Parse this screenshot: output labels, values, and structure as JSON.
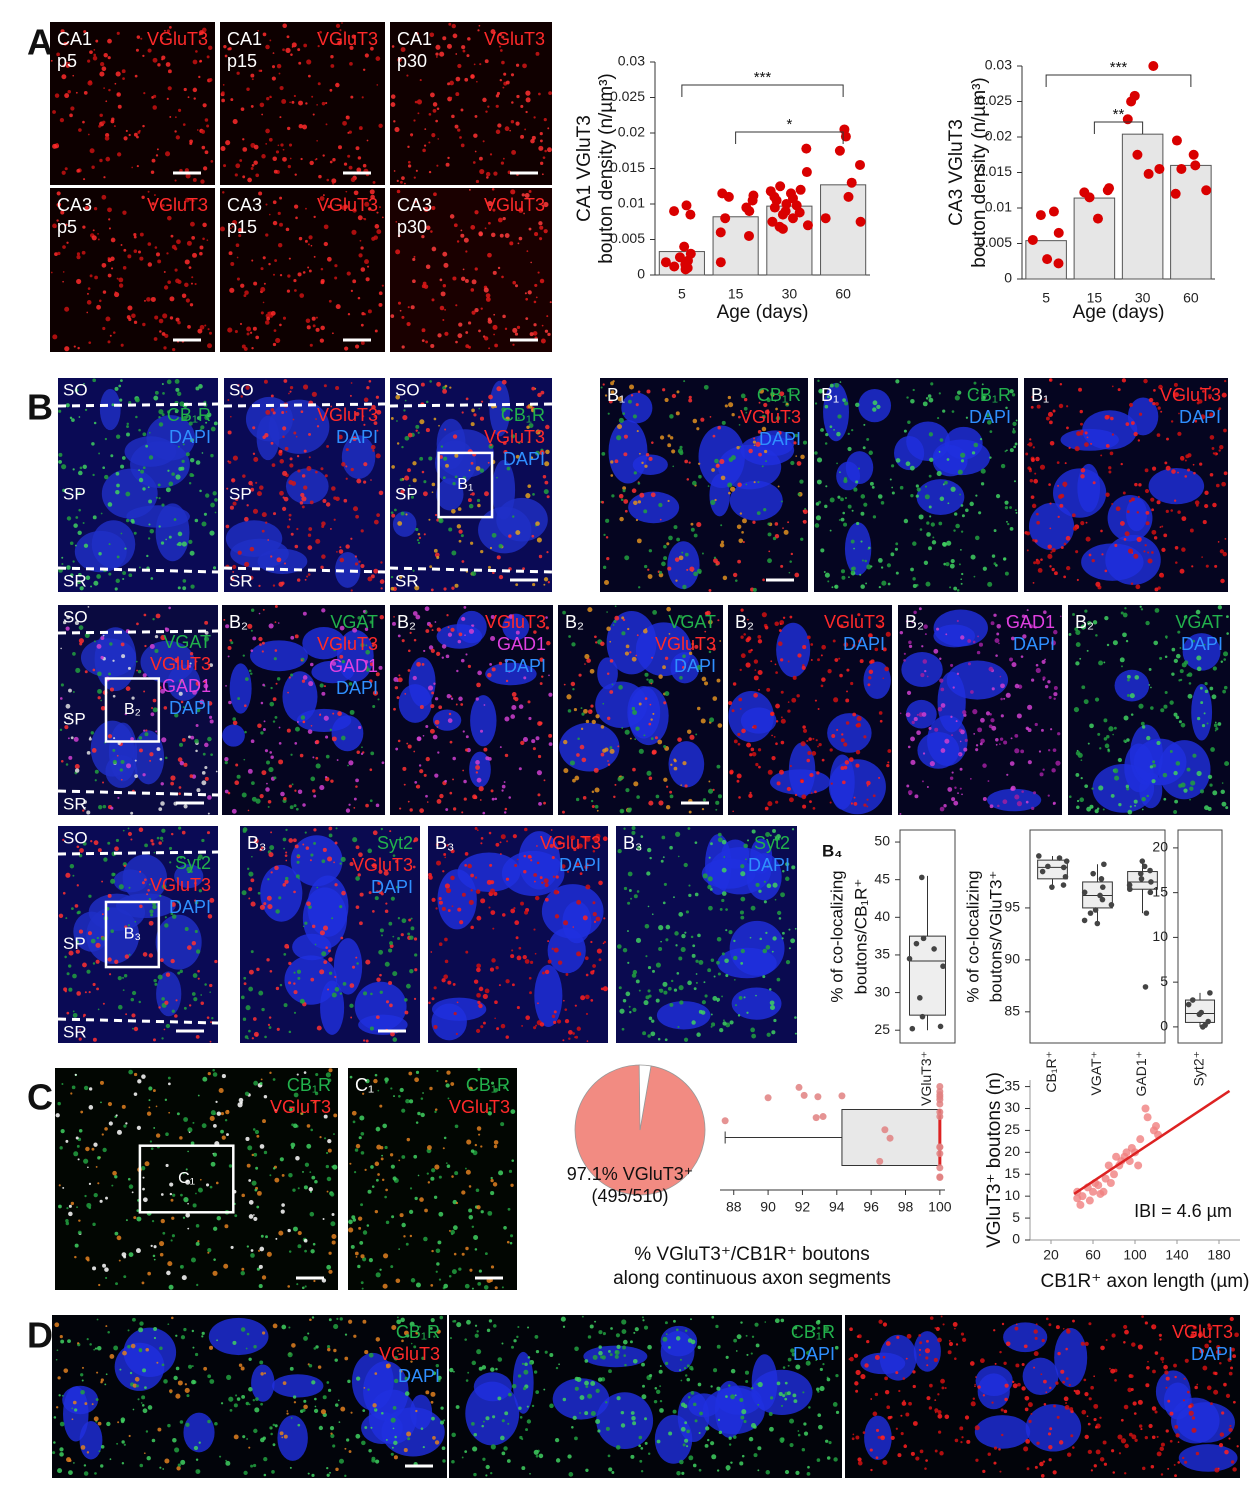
{
  "panel_labels": [
    "A",
    "B",
    "C",
    "D"
  ],
  "images": [
    {
      "bg": "#0d0000",
      "dots": [
        "#c81010",
        "#ff2a2a"
      ],
      "left": [
        {
          "text": "CA1",
          "color": "#ffffff"
        },
        {
          "text": "p5",
          "color": "#ffffff"
        }
      ],
      "right": [
        {
          "text": "VGluT3",
          "color": "#ff2a2a"
        }
      ],
      "scale_bar": true
    },
    {
      "bg": "#0d0000",
      "dots": [
        "#c81010",
        "#ff2a2a"
      ],
      "left": [
        {
          "text": "CA1",
          "color": "#ffffff"
        },
        {
          "text": "p15",
          "color": "#ffffff"
        }
      ],
      "right": [
        {
          "text": "VGluT3",
          "color": "#ff2a2a"
        }
      ],
      "scale_bar": true
    },
    {
      "bg": "#100000",
      "dots": [
        "#d01515",
        "#ff3030"
      ],
      "left": [
        {
          "text": "CA1",
          "color": "#ffffff"
        },
        {
          "text": "p30",
          "color": "#ffffff"
        }
      ],
      "right": [
        {
          "text": "VGluT3",
          "color": "#ff2a2a"
        }
      ],
      "scale_bar": true
    },
    {
      "bg": "#0d0000",
      "dots": [
        "#c81010",
        "#ff2a2a"
      ],
      "left": [
        {
          "text": "CA3",
          "color": "#ffffff"
        },
        {
          "text": "p5",
          "color": "#ffffff"
        }
      ],
      "right": [
        {
          "text": "VGluT3",
          "color": "#ff2a2a"
        }
      ],
      "scale_bar": true
    },
    {
      "bg": "#0d0000",
      "dots": [
        "#c81010",
        "#ff2a2a"
      ],
      "left": [
        {
          "text": "CA3",
          "color": "#ffffff"
        },
        {
          "text": "p15",
          "color": "#ffffff"
        }
      ],
      "right": [
        {
          "text": "VGluT3",
          "color": "#ff2a2a"
        }
      ],
      "scale_bar": true
    },
    {
      "bg": "#1a0000",
      "dots": [
        "#e01818",
        "#ff3a3a"
      ],
      "left": [
        {
          "text": "CA3",
          "color": "#ffffff"
        },
        {
          "text": "p30",
          "color": "#ffffff"
        }
      ],
      "right": [
        {
          "text": "VGluT3",
          "color": "#ff2a2a"
        }
      ],
      "scale_bar": true
    },
    {
      "bg": "#0a0a55",
      "nuclei": "#1f2fc8",
      "dots": [
        "#22a040",
        "#3fd060"
      ],
      "layers": [
        "SO",
        "SP",
        "SR"
      ],
      "right": [
        {
          "text": "CB₁R",
          "color": "#22b14c"
        },
        {
          "text": "DAPI",
          "color": "#2f8fff"
        }
      ]
    },
    {
      "bg": "#0a0a55",
      "nuclei": "#1f2fc8",
      "dots": [
        "#d01818",
        "#ff3030"
      ],
      "layers": [
        "SO",
        "SP",
        "SR"
      ],
      "right": [
        {
          "text": "VGluT3",
          "color": "#ff2a2a"
        },
        {
          "text": "DAPI",
          "color": "#2f8fff"
        }
      ]
    },
    {
      "bg": "#0a0a55",
      "nuclei": "#1f2fc8",
      "dots": [
        "#22a040",
        "#ff3030",
        "#e0a020"
      ],
      "layers": [
        "SO",
        "SP",
        "SR"
      ],
      "inset": "B₁",
      "right": [
        {
          "text": "CB₁R",
          "color": "#22b14c"
        },
        {
          "text": "VGluT3",
          "color": "#ff2a2a"
        },
        {
          "text": "DAPI",
          "color": "#2f8fff"
        }
      ],
      "scale_bar": true
    },
    {
      "bg": "#050520",
      "nuclei": "#1f2fe0",
      "dots": [
        "#22a040",
        "#ff3030",
        "#e09020"
      ],
      "left": [
        {
          "text": "B₁",
          "color": "#ffffff"
        }
      ],
      "right": [
        {
          "text": "CB₁R",
          "color": "#22b14c"
        },
        {
          "text": "VGluT3",
          "color": "#ff2a2a"
        },
        {
          "text": "DAPI",
          "color": "#2f8fff"
        }
      ],
      "scale_bar": true
    },
    {
      "bg": "#050520",
      "nuclei": "#1f2fe0",
      "dots": [
        "#22a040",
        "#3fd060"
      ],
      "left": [
        {
          "text": "B₁",
          "color": "#ffffff"
        }
      ],
      "right": [
        {
          "text": "CB₁R",
          "color": "#22b14c"
        },
        {
          "text": "DAPI",
          "color": "#2f8fff"
        }
      ]
    },
    {
      "bg": "#050520",
      "nuclei": "#1f2fe0",
      "dots": [
        "#ff2020",
        "#d01010"
      ],
      "left": [
        {
          "text": "B₁",
          "color": "#ffffff"
        }
      ],
      "right": [
        {
          "text": "VGluT3",
          "color": "#ff2a2a"
        },
        {
          "text": "DAPI",
          "color": "#2f8fff"
        }
      ]
    },
    {
      "bg": "#0a0a40",
      "nuclei": "#1f2fc8",
      "dots": [
        "#22a040",
        "#ff3030",
        "#d040d0",
        "#e0e0e0"
      ],
      "layers": [
        "SO",
        "SP",
        "SR"
      ],
      "inset": "B₂",
      "right": [
        {
          "text": "VGAT",
          "color": "#22b14c"
        },
        {
          "text": "VGluT3",
          "color": "#ff2a2a"
        },
        {
          "text": "GAD1",
          "color": "#e040e0"
        },
        {
          "text": "DAPI",
          "color": "#2f8fff"
        }
      ],
      "scale_bar": true
    },
    {
      "bg": "#050520",
      "nuclei": "#1f2fe0",
      "dots": [
        "#22a040",
        "#ff3030",
        "#d040d0"
      ],
      "left": [
        {
          "text": "B₂",
          "color": "#ffffff"
        }
      ],
      "right": [
        {
          "text": "VGAT",
          "color": "#22b14c"
        },
        {
          "text": "VGluT3",
          "color": "#ff2a2a"
        },
        {
          "text": "GAD1",
          "color": "#e040e0"
        },
        {
          "text": "DAPI",
          "color": "#2f8fff"
        }
      ]
    },
    {
      "bg": "#050520",
      "nuclei": "#1f2fe0",
      "dots": [
        "#ff3030",
        "#d040d0"
      ],
      "left": [
        {
          "text": "B₂",
          "color": "#ffffff"
        }
      ],
      "right": [
        {
          "text": "VGluT3",
          "color": "#ff2a2a"
        },
        {
          "text": "GAD1",
          "color": "#e040e0"
        },
        {
          "text": "DAPI",
          "color": "#2f8fff"
        }
      ]
    },
    {
      "bg": "#050520",
      "nuclei": "#1f2fe0",
      "dots": [
        "#22a040",
        "#ff3030",
        "#e09020"
      ],
      "left": [
        {
          "text": "B₂",
          "color": "#ffffff"
        }
      ],
      "right": [
        {
          "text": "VGAT",
          "color": "#22b14c"
        },
        {
          "text": "VGluT3",
          "color": "#ff2a2a"
        },
        {
          "text": "DAPI",
          "color": "#2f8fff"
        }
      ],
      "scale_bar": true
    },
    {
      "bg": "#050520",
      "nuclei": "#1f2fe0",
      "dots": [
        "#ff2020",
        "#d01010"
      ],
      "left": [
        {
          "text": "B₂",
          "color": "#ffffff"
        }
      ],
      "right": [
        {
          "text": "VGluT3",
          "color": "#ff2a2a"
        },
        {
          "text": "DAPI",
          "color": "#2f8fff"
        }
      ]
    },
    {
      "bg": "#050520",
      "nuclei": "#1f2fe0",
      "dots": [
        "#d040d0",
        "#a020a0"
      ],
      "left": [
        {
          "text": "B₂",
          "color": "#ffffff"
        }
      ],
      "right": [
        {
          "text": "GAD1",
          "color": "#e040e0"
        },
        {
          "text": "DAPI",
          "color": "#2f8fff"
        }
      ]
    },
    {
      "bg": "#050520",
      "nuclei": "#1f2fe0",
      "dots": [
        "#22a040",
        "#3fd060"
      ],
      "left": [
        {
          "text": "B₂",
          "color": "#ffffff"
        }
      ],
      "right": [
        {
          "text": "VGAT",
          "color": "#22b14c"
        },
        {
          "text": "DAPI",
          "color": "#2f8fff"
        }
      ]
    },
    {
      "bg": "#0a0a55",
      "nuclei": "#1f2fc8",
      "dots": [
        "#22a040",
        "#ff3030"
      ],
      "layers": [
        "SO",
        "SP",
        "SR"
      ],
      "inset": "B₃",
      "right": [
        {
          "text": "Syt2",
          "color": "#22b14c"
        },
        {
          "text": "VGluT3",
          "color": "#ff2a2a"
        },
        {
          "text": "DAPI",
          "color": "#2f8fff"
        }
      ],
      "scale_bar": true
    },
    {
      "bg": "#0a0a50",
      "nuclei": "#1f2fe0",
      "dots": [
        "#22a040",
        "#ff3030"
      ],
      "left": [
        {
          "text": "B₃",
          "color": "#ffffff"
        }
      ],
      "right": [
        {
          "text": "Syt2",
          "color": "#22b14c"
        },
        {
          "text": "VGluT3",
          "color": "#ff2a2a"
        },
        {
          "text": "DAPI",
          "color": "#2f8fff"
        }
      ],
      "scale_bar": true
    },
    {
      "bg": "#0a0a50",
      "nuclei": "#1f2fe0",
      "dots": [
        "#ff2020",
        "#d01010"
      ],
      "left": [
        {
          "text": "B₃",
          "color": "#ffffff"
        }
      ],
      "right": [
        {
          "text": "VGluT3",
          "color": "#ff2a2a"
        },
        {
          "text": "DAPI",
          "color": "#2f8fff"
        }
      ]
    },
    {
      "bg": "#0a0a50",
      "nuclei": "#1f2fe0",
      "dots": [
        "#22a040",
        "#3fd060"
      ],
      "left": [
        {
          "text": "B₃",
          "color": "#ffffff"
        }
      ],
      "right": [
        {
          "text": "Syt2",
          "color": "#22b14c"
        },
        {
          "text": "DAPI",
          "color": "#2f8fff"
        }
      ]
    },
    {
      "bg": "#020602",
      "dots": [
        "#22a040",
        "#3fd060",
        "#e08020",
        "#ffffff"
      ],
      "inset": "C₁",
      "right": [
        {
          "text": "CB₁R",
          "color": "#22b14c"
        },
        {
          "text": "VGluT3",
          "color": "#ff2a2a"
        }
      ],
      "scale_bar": true
    },
    {
      "bg": "#020602",
      "dots": [
        "#22a040",
        "#3fd060",
        "#e08020"
      ],
      "left": [
        {
          "text": "C₁",
          "color": "#ffffff"
        }
      ],
      "right": [
        {
          "text": "CB₁R",
          "color": "#22b14c"
        },
        {
          "text": "VGluT3",
          "color": "#ff2a2a"
        }
      ],
      "scale_bar": true
    },
    {
      "bg": "#02040a",
      "nuclei": "#1f2fe0",
      "dots": [
        "#22a040",
        "#3fd060",
        "#e08020"
      ],
      "right": [
        {
          "text": "CB₁R",
          "color": "#22b14c"
        },
        {
          "text": "VGluT3",
          "color": "#ff2a2a"
        },
        {
          "text": "DAPI",
          "color": "#2f8fff"
        }
      ],
      "scale_bar": true
    },
    {
      "bg": "#02040a",
      "nuclei": "#1f2fe0",
      "dots": [
        "#22a040",
        "#3fd060"
      ],
      "right": [
        {
          "text": "CB₁R",
          "color": "#22b14c"
        },
        {
          "text": "DAPI",
          "color": "#2f8fff"
        }
      ]
    },
    {
      "bg": "#02040a",
      "nuclei": "#1f2fe0",
      "dots": [
        "#d01010",
        "#ff2020"
      ],
      "right": [
        {
          "text": "VGluT3",
          "color": "#ff2a2a"
        },
        {
          "text": "DAPI",
          "color": "#2f8fff"
        }
      ]
    }
  ],
  "chart_data": [
    {
      "type": "bar",
      "categories": [
        "5",
        "15",
        "30",
        "60"
      ],
      "values": [
        0.0033,
        0.0082,
        0.0097,
        0.0127
      ],
      "color": "#e6e6e6",
      "point_color": "#d90000",
      "points": [
        [
          0.0098,
          0.009,
          0.0085,
          0.004,
          0.003,
          0.0025,
          0.002,
          0.0018,
          0.0015,
          0.0012,
          0.001,
          0.0008
        ],
        [
          0.0115,
          0.0112,
          0.011,
          0.0105,
          0.0095,
          0.009,
          0.008,
          0.006,
          0.0055,
          0.0018
        ],
        [
          0.0178,
          0.0145,
          0.0125,
          0.012,
          0.0118,
          0.0115,
          0.011,
          0.0108,
          0.0105,
          0.01,
          0.0098,
          0.0095,
          0.009,
          0.0088,
          0.0085,
          0.008,
          0.0075,
          0.007,
          0.0068,
          0.0065
        ],
        [
          0.0205,
          0.0195,
          0.0175,
          0.0155,
          0.013,
          0.011,
          0.008,
          0.0075
        ]
      ],
      "ylim": [
        0,
        0.03
      ],
      "yticks": [
        0,
        0.005,
        0.01,
        0.015,
        0.02,
        0.025,
        0.03
      ],
      "ylabel": [
        "CA1 VGluT3",
        "bouton density (n/µm³)"
      ],
      "xlabel": "Age (days)",
      "annotations": [
        "***",
        "*"
      ]
    },
    {
      "type": "bar",
      "categories": [
        "5",
        "15",
        "30",
        "60"
      ],
      "values": [
        0.0054,
        0.0114,
        0.0204,
        0.016
      ],
      "color": "#e6e6e6",
      "point_color": "#d90000",
      "points": [
        [
          0.0095,
          0.009,
          0.0065,
          0.0055,
          0.0028,
          0.0022
        ],
        [
          0.0128,
          0.0125,
          0.0122,
          0.0115,
          0.0085
        ],
        [
          0.03,
          0.0258,
          0.025,
          0.0225,
          0.0175,
          0.0155,
          0.0148
        ],
        [
          0.0195,
          0.0175,
          0.016,
          0.0155,
          0.0125,
          0.012
        ]
      ],
      "ylim": [
        0,
        0.03
      ],
      "yticks": [
        0,
        0.005,
        0.01,
        0.015,
        0.02,
        0.025,
        0.03
      ],
      "ylabel": [
        "CA3 VGluT3",
        "bouton density (n/µm³)"
      ],
      "xlabel": "Age (days)",
      "annotations": [
        "***",
        "**"
      ]
    },
    {
      "type": "box",
      "tag": "B₄",
      "categories": [
        "VGluT3⁺"
      ],
      "boxes": [
        {
          "q1": 27,
          "median": 34.2,
          "q3": 37.5,
          "whislo": 25,
          "whishi": 45.5,
          "points": [
            45.3,
            37.2,
            36.5,
            35.8,
            34.5,
            33.5,
            29.3,
            26.8,
            25.5,
            25.2
          ]
        }
      ],
      "ylim": [
        23.3,
        51.6
      ],
      "yticks": [
        25,
        30,
        35,
        40,
        45,
        50
      ],
      "ylabel": [
        "% of co-localizing",
        "boutons/CB₁R⁺"
      ]
    },
    {
      "type": "box",
      "categories": [
        "CB₁R⁺",
        "VGAT⁺",
        "GAD1⁺"
      ],
      "boxes": [
        {
          "q1": 97.8,
          "median": 98.9,
          "q3": 99.6,
          "whislo": 97,
          "whishi": 100,
          "points": [
            100,
            99.8,
            99.5,
            99,
            98.9,
            98.5,
            98,
            97.2,
            97
          ]
        },
        {
          "q1": 95,
          "median": 96.2,
          "q3": 97.5,
          "whislo": 93.5,
          "whishi": 99.2,
          "points": [
            99.2,
            98.3,
            97.8,
            97,
            96.5,
            96.2,
            95.8,
            95.3,
            94.8,
            94.5,
            93.8,
            93.5
          ]
        },
        {
          "q1": 96.8,
          "median": 97.5,
          "q3": 98.5,
          "whislo": 94.5,
          "whishi": 99.5,
          "points": [
            99.5,
            99,
            98.6,
            98.3,
            97.8,
            97.5,
            97.2,
            96.8,
            96.5,
            94.5,
            87.4
          ]
        }
      ],
      "ylim": [
        82,
        102.5
      ],
      "yticks": [
        85,
        90,
        95
      ],
      "ylabel": [
        "% of co-localizing",
        "boutons/VGluT3⁺"
      ]
    },
    {
      "type": "box",
      "categories": [
        "Syt2⁺"
      ],
      "boxes": [
        {
          "q1": 0.5,
          "median": 1.5,
          "q3": 3,
          "whislo": 0,
          "whishi": 3.8,
          "points": [
            3.8,
            3,
            2.5,
            1.6,
            1.4,
            0.6,
            0.2,
            0
          ]
        }
      ],
      "ylim": [
        -1.8,
        22
      ],
      "yticks": [
        0,
        5,
        10,
        15,
        20
      ]
    },
    {
      "type": "pie",
      "values": [
        97.1,
        2.9
      ],
      "colors": [
        "#f28b82",
        "#ffffff"
      ],
      "labels": [
        "97.1% VGluT3⁺",
        "(495/510)"
      ]
    },
    {
      "type": "hbox",
      "box": {
        "whislo": 87.5,
        "q1": 94.3,
        "median": 100,
        "q3": 100,
        "whishi": 100
      },
      "points": [
        87.5,
        90,
        91.8,
        92.1,
        92.8,
        92.9,
        93.2,
        94.3,
        96.5,
        96.8,
        97.1,
        100,
        100,
        100,
        100,
        100,
        100,
        100,
        100,
        100,
        100,
        100,
        100,
        100,
        100
      ],
      "color": "#e08080",
      "xlim": [
        87.2,
        100.3
      ],
      "xticks": [
        88,
        90,
        92,
        94,
        96,
        98,
        100
      ],
      "xlabel": [
        "% VGluT3⁺/CB1R⁺ boutons",
        "along continuous axon segments"
      ]
    },
    {
      "type": "scatter",
      "x": [
        45,
        45,
        48,
        50,
        55,
        57,
        60,
        62,
        65,
        67,
        70,
        72,
        75,
        77,
        80,
        82,
        85,
        87,
        90,
        92,
        95,
        97,
        100,
        103,
        105,
        110,
        112,
        118,
        120,
        122
      ],
      "y": [
        11,
        9.5,
        8,
        10,
        12,
        9,
        11,
        13,
        12.5,
        10.5,
        11,
        14,
        17,
        13,
        15,
        19,
        17,
        18,
        19,
        20,
        18,
        21,
        20,
        17,
        23,
        30,
        28,
        25,
        26,
        24
      ],
      "color": "#f08080",
      "fit": {
        "x": [
          42,
          190
        ],
        "y": [
          10.5,
          34
        ],
        "color": "#dd2222"
      },
      "xlim": [
        0,
        200
      ],
      "ylim": [
        0,
        36.5
      ],
      "xticks": [
        20,
        60,
        100,
        140,
        180
      ],
      "yticks": [
        0,
        5,
        10,
        15,
        20,
        25,
        30,
        35
      ],
      "ylabel": "VGluT3⁺ boutons (n)",
      "xlabel": "CB1R⁺ axon length (µm)",
      "annotation": "IBI = 4.6 µm"
    }
  ]
}
